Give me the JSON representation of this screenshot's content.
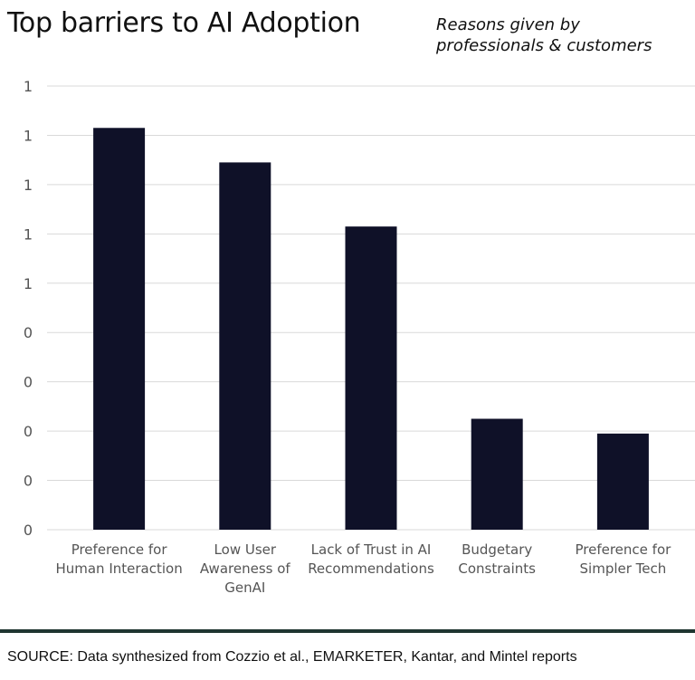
{
  "header": {
    "title": "Top barriers to AI Adoption",
    "subtitle_lines": [
      "Reasons given by",
      "professionals & customers"
    ]
  },
  "footer": {
    "source": "SOURCE: Data synthesized from Cozzio et al., EMARKETER, Kantar, and Mintel reports"
  },
  "colors": {
    "bar": "#0f1128",
    "grid": "#d9d9d9",
    "divider": "#1f3530"
  },
  "chart_data": {
    "type": "bar",
    "title": "Top barriers to AI Adoption",
    "subtitle": "Reasons given by professionals & customers",
    "categories": [
      [
        "Preference for",
        "Human Interaction"
      ],
      [
        "Low User",
        "Awareness of",
        "GenAI"
      ],
      [
        "Lack of Trust in AI",
        "Recommendations"
      ],
      [
        "Budgetary",
        "Constraints"
      ],
      [
        "Preference for",
        "Simpler Tech"
      ]
    ],
    "values": [
      0.815,
      0.745,
      0.615,
      0.225,
      0.195
    ],
    "ytick_values": [
      0,
      0.1,
      0.2,
      0.3,
      0.4,
      0.5,
      0.6,
      0.7,
      0.8,
      0.9
    ],
    "ytick_labels": [
      "0",
      "0",
      "0",
      "0",
      "0",
      "1",
      "1",
      "1",
      "1",
      "1"
    ],
    "ylim": [
      0,
      0.9
    ],
    "grid": true,
    "xlabel": "",
    "ylabel": ""
  }
}
